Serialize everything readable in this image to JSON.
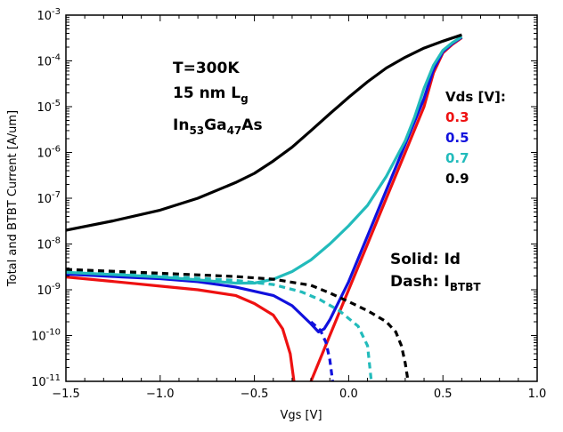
{
  "chart_data": {
    "type": "line",
    "xlabel": "Vgs [V]",
    "ylabel": "Total and BTBT Current [A/um]",
    "xlim": [
      -1.5,
      1.0
    ],
    "ylim_log10": [
      -11,
      -3
    ],
    "y_scale": "log",
    "grid": false,
    "x_ticks": [
      "−1.5",
      "−1.0",
      "−0.5",
      "0.0",
      "0.5",
      "1.0"
    ],
    "y_ticks": [
      {
        "base": "10",
        "exp": "-11"
      },
      {
        "base": "10",
        "exp": "-10"
      },
      {
        "base": "10",
        "exp": "-9"
      },
      {
        "base": "10",
        "exp": "-8"
      },
      {
        "base": "10",
        "exp": "-7"
      },
      {
        "base": "10",
        "exp": "-6"
      },
      {
        "base": "10",
        "exp": "-5"
      },
      {
        "base": "10",
        "exp": "-4"
      },
      {
        "base": "10",
        "exp": "-3"
      }
    ],
    "annotations": {
      "temperature": "T=300K",
      "gate_length": "15 nm L",
      "gate_length_sub": "g",
      "material_a": "In",
      "material_a_sub": "53",
      "material_b": "Ga",
      "material_b_sub": "47",
      "material_c": "As",
      "solid_note": "Solid: Id",
      "dash_note": "Dash: I",
      "dash_note_sub": "BTBT"
    },
    "legend": {
      "title": "Vds [V]:",
      "placement": "right",
      "entries": [
        {
          "label": "0.3",
          "color": "#ee1111"
        },
        {
          "label": "0.5",
          "color": "#1111dd"
        },
        {
          "label": "0.7",
          "color": "#22bbbb"
        },
        {
          "label": "0.9",
          "color": "#000000"
        }
      ]
    },
    "series": [
      {
        "vds": "0.3",
        "kind": "Id",
        "style": "solid",
        "color": "#ee1111",
        "points": [
          [
            -1.5,
            1.9e-09
          ],
          [
            -1.2,
            1.45e-09
          ],
          [
            -1.0,
            1.2e-09
          ],
          [
            -0.8,
            1e-09
          ],
          [
            -0.6,
            7.5e-10
          ],
          [
            -0.5,
            5e-10
          ],
          [
            -0.4,
            2.8e-10
          ],
          [
            -0.35,
            1.4e-10
          ],
          [
            -0.31,
            4e-11
          ],
          [
            -0.29,
            1e-11
          ]
        ]
      },
      {
        "vds": "0.3",
        "kind": "Id",
        "style": "solid",
        "color": "#ee1111",
        "points": [
          [
            -0.2,
            1e-11
          ],
          [
            -0.1,
            1e-10
          ],
          [
            0.0,
            1e-09
          ],
          [
            0.1,
            1e-08
          ],
          [
            0.2,
            1e-07
          ],
          [
            0.3,
            1e-06
          ],
          [
            0.4,
            1e-05
          ],
          [
            0.45,
            5.5e-05
          ],
          [
            0.5,
            0.00015
          ],
          [
            0.55,
            0.00023
          ],
          [
            0.6,
            0.00032
          ]
        ]
      },
      {
        "vds": "0.5",
        "kind": "Id",
        "style": "solid",
        "color": "#1111dd",
        "points": [
          [
            -1.5,
            2.2e-09
          ],
          [
            -1.2,
            1.9e-09
          ],
          [
            -1.0,
            1.75e-09
          ],
          [
            -0.8,
            1.5e-09
          ],
          [
            -0.6,
            1.15e-09
          ],
          [
            -0.4,
            7.5e-10
          ],
          [
            -0.3,
            4.5e-10
          ],
          [
            -0.2,
            1.8e-10
          ],
          [
            -0.16,
            1.2e-10
          ],
          [
            -0.13,
            1.4e-10
          ],
          [
            -0.1,
            2.2e-10
          ],
          [
            0.0,
            1.5e-09
          ],
          [
            0.1,
            1.5e-08
          ],
          [
            0.2,
            1.5e-07
          ],
          [
            0.3,
            1.5e-06
          ],
          [
            0.4,
            1.5e-05
          ],
          [
            0.45,
            6.5e-05
          ],
          [
            0.5,
            0.00016
          ],
          [
            0.55,
            0.00024
          ],
          [
            0.6,
            0.00033
          ]
        ]
      },
      {
        "vds": "0.7",
        "kind": "Id",
        "style": "solid",
        "color": "#22bbbb",
        "points": [
          [
            -1.5,
            2.4e-09
          ],
          [
            -1.2,
            2.1e-09
          ],
          [
            -1.0,
            1.9e-09
          ],
          [
            -0.8,
            1.65e-09
          ],
          [
            -0.6,
            1.4e-09
          ],
          [
            -0.5,
            1.4e-09
          ],
          [
            -0.4,
            1.7e-09
          ],
          [
            -0.3,
            2.5e-09
          ],
          [
            -0.2,
            4.5e-09
          ],
          [
            -0.1,
            1e-08
          ],
          [
            0.0,
            2.5e-08
          ],
          [
            0.1,
            7e-08
          ],
          [
            0.2,
            3e-07
          ],
          [
            0.3,
            1.8e-06
          ],
          [
            0.35,
            6e-06
          ],
          [
            0.4,
            2.5e-05
          ],
          [
            0.45,
            8e-05
          ],
          [
            0.5,
            0.00017
          ],
          [
            0.55,
            0.00025
          ],
          [
            0.6,
            0.00034
          ]
        ]
      },
      {
        "vds": "0.9",
        "kind": "Id",
        "style": "solid",
        "color": "#000000",
        "points": [
          [
            -1.5,
            2e-08
          ],
          [
            -1.25,
            3.2e-08
          ],
          [
            -1.0,
            5.5e-08
          ],
          [
            -0.8,
            1e-07
          ],
          [
            -0.6,
            2.2e-07
          ],
          [
            -0.5,
            3.5e-07
          ],
          [
            -0.4,
            6.5e-07
          ],
          [
            -0.3,
            1.3e-06
          ],
          [
            -0.2,
            3e-06
          ],
          [
            -0.1,
            7e-06
          ],
          [
            0.0,
            1.6e-05
          ],
          [
            0.1,
            3.5e-05
          ],
          [
            0.2,
            7e-05
          ],
          [
            0.3,
            0.00012
          ],
          [
            0.4,
            0.00019
          ],
          [
            0.5,
            0.00027
          ],
          [
            0.6,
            0.00037
          ]
        ]
      },
      {
        "vds": "0.5",
        "kind": "I_BTBT",
        "style": "dash",
        "color": "#1111dd",
        "points": [
          [
            -0.2,
            2e-10
          ],
          [
            -0.15,
            1.3e-10
          ],
          [
            -0.12,
            7e-11
          ],
          [
            -0.1,
            3e-11
          ],
          [
            -0.085,
            1e-11
          ]
        ]
      },
      {
        "vds": "0.7",
        "kind": "I_BTBT",
        "style": "dash",
        "color": "#22bbbb",
        "points": [
          [
            -1.5,
            2.5e-09
          ],
          [
            -1.0,
            2e-09
          ],
          [
            -0.6,
            1.6e-09
          ],
          [
            -0.4,
            1.3e-09
          ],
          [
            -0.25,
            9e-10
          ],
          [
            -0.15,
            6e-10
          ],
          [
            -0.05,
            3.5e-10
          ],
          [
            0.05,
            1.6e-10
          ],
          [
            0.1,
            6e-11
          ],
          [
            0.12,
            1e-11
          ]
        ]
      },
      {
        "vds": "0.9",
        "kind": "I_BTBT",
        "style": "dash",
        "color": "#000000",
        "points": [
          [
            -1.5,
            2.8e-09
          ],
          [
            -1.0,
            2.3e-09
          ],
          [
            -0.6,
            1.95e-09
          ],
          [
            -0.4,
            1.7e-09
          ],
          [
            -0.2,
            1.25e-09
          ],
          [
            -0.1,
            8.5e-10
          ],
          [
            0.0,
            5.5e-10
          ],
          [
            0.1,
            3.5e-10
          ],
          [
            0.2,
            2e-10
          ],
          [
            0.25,
            1.2e-10
          ],
          [
            0.28,
            6e-11
          ],
          [
            0.3,
            2.5e-11
          ],
          [
            0.315,
            1e-11
          ]
        ]
      }
    ]
  }
}
